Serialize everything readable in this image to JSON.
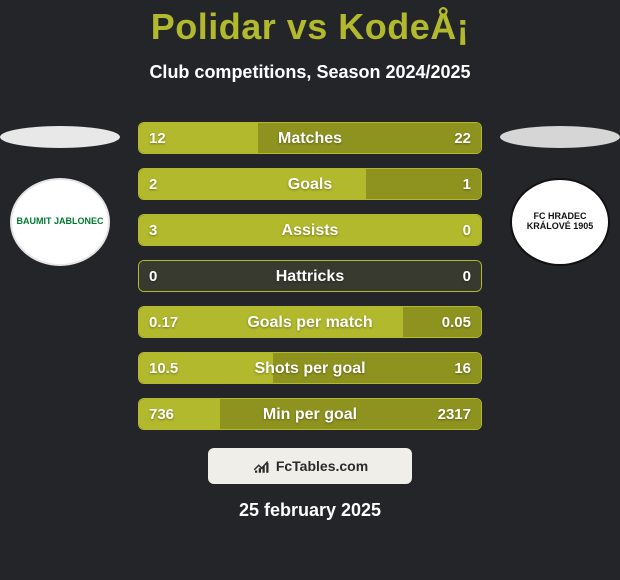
{
  "colors": {
    "page_bg": "#232528",
    "text": "#ffffff",
    "title": "#b2b92c",
    "subtitle": "#ffffff",
    "oval_team1": "#e8e8e8",
    "oval_team2": "#d6d6d6",
    "bar_border": "#b2b92c",
    "bar_team1": "#b2b92c",
    "bar_team2": "#8e931f",
    "bar_empty": "#383a30",
    "brand_bg": "#efeee9",
    "brand_text": "#2a2a2a",
    "date": "#ffffff"
  },
  "title": "Polidar vs KodeÅ¡",
  "subtitle": "Club competitions, Season 2024/2025",
  "team1_short": "BAUMIT JABLONEC",
  "team2_short": "FC HRADEC KRÁLOVÉ 1905",
  "stats": [
    {
      "label": "Matches",
      "team1": "12",
      "team2": "22",
      "share1": 0.353
    },
    {
      "label": "Goals",
      "team1": "2",
      "team2": "1",
      "share1": 0.667
    },
    {
      "label": "Assists",
      "team1": "3",
      "team2": "0",
      "share1": 1.0
    },
    {
      "label": "Hattricks",
      "team1": "0",
      "team2": "0",
      "share1": 0.5
    },
    {
      "label": "Goals per match",
      "team1": "0.17",
      "team2": "0.05",
      "share1": 0.773
    },
    {
      "label": "Shots per goal",
      "team1": "10.5",
      "team2": "16",
      "share1": 0.396
    },
    {
      "label": "Min per goal",
      "team1": "736",
      "team2": "2317",
      "share1": 0.241
    }
  ],
  "zero_both_indices": [
    3
  ],
  "brand": "FcTables.com",
  "date": "25 february 2025"
}
